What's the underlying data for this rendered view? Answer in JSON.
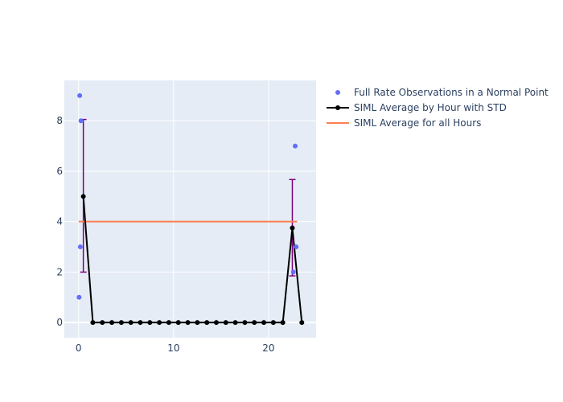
{
  "chart_data": {
    "type": "scatter",
    "title": "",
    "xlabel": "",
    "ylabel": "",
    "xlim": [
      -1.5,
      25
    ],
    "ylim": [
      -0.6,
      9.6
    ],
    "grid": true,
    "legend_position": "top-right",
    "x_ticks": [
      0,
      10,
      20
    ],
    "y_ticks": [
      0,
      2,
      4,
      6,
      8
    ],
    "colors": {
      "plot_bg": "#E5ECF6",
      "grid": "#ffffff",
      "axis_text": "#2a3f5f",
      "observations": "#636efa",
      "hourly_avg": "#000000",
      "error_bars": "#800080",
      "overall_avg": "#ff7f50"
    },
    "series": [
      {
        "name": "Full Rate Observations in a Normal Point",
        "mode": "markers",
        "x": [
          0.05,
          0.12,
          0.18,
          0.25,
          22.6,
          22.8,
          22.9
        ],
        "y": [
          1,
          9,
          3,
          8,
          2,
          7,
          3
        ]
      },
      {
        "name": "SIML Average by Hour with STD",
        "mode": "lines+markers",
        "x": [
          0.5,
          1.5,
          2.5,
          3.5,
          4.5,
          5.5,
          6.5,
          7.5,
          8.5,
          9.5,
          10.5,
          11.5,
          12.5,
          13.5,
          14.5,
          15.5,
          16.5,
          17.5,
          18.5,
          19.5,
          20.5,
          21.5,
          22.5,
          23.5
        ],
        "y": [
          5,
          0,
          0,
          0,
          0,
          0,
          0,
          0,
          0,
          0,
          0,
          0,
          0,
          0,
          0,
          0,
          0,
          0,
          0,
          0,
          0,
          0,
          3.75,
          0
        ],
        "error": [
          {
            "x": 0.5,
            "low": 2.0,
            "high": 8.05
          },
          {
            "x": 22.5,
            "low": 1.85,
            "high": 5.67
          }
        ]
      },
      {
        "name": "SIML Average for all Hours",
        "mode": "lines",
        "x": [
          0,
          23
        ],
        "y": [
          4,
          4
        ]
      }
    ]
  }
}
